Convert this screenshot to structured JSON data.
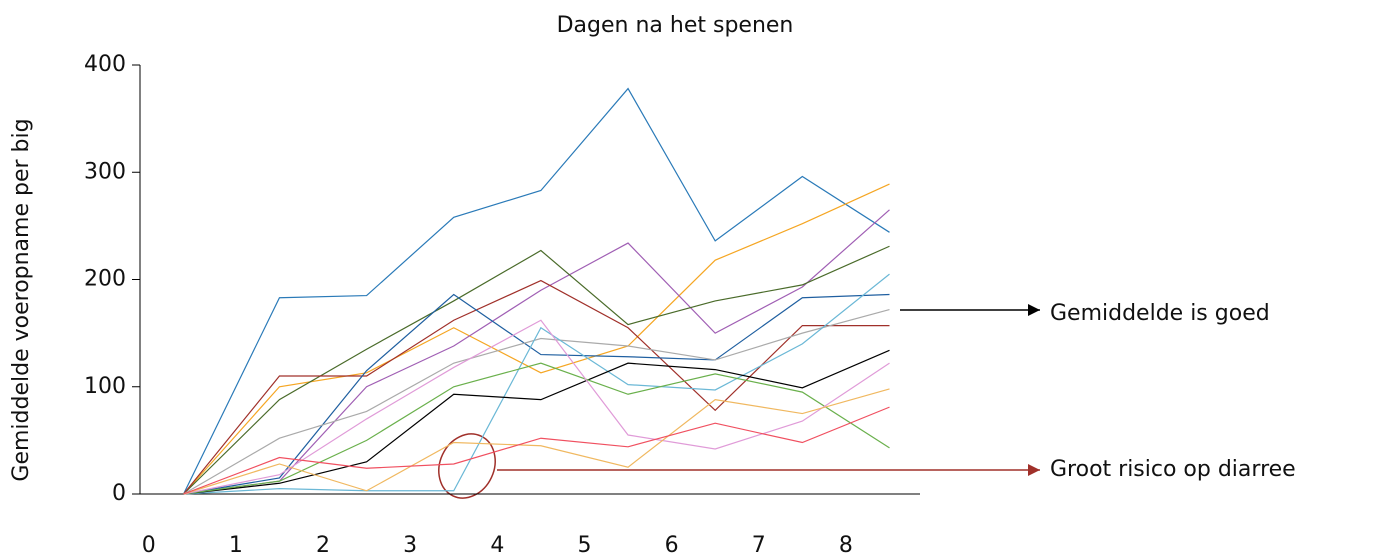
{
  "chart_data": {
    "type": "line",
    "title": "Dagen na het spenen",
    "y_label": "Gemiddelde voeropname per big",
    "annotations": [
      "Gemiddelde is goed",
      "Groot risico op diarree"
    ],
    "x": [
      0.4,
      1.5,
      2.5,
      3.5,
      4.5,
      5.5,
      6.5,
      7.5,
      8.5
    ],
    "xlim": [
      -0.1,
      8.85
    ],
    "xticks": [
      0,
      1,
      2,
      3,
      4,
      5,
      6,
      7,
      8
    ],
    "ylim": [
      0,
      400
    ],
    "yticks": [
      0,
      100,
      200,
      300,
      400
    ],
    "grid": false,
    "series": [
      {
        "color": "#2a7ab8",
        "values": [
          0,
          183,
          185,
          258,
          283,
          378,
          236,
          296,
          244
        ]
      },
      {
        "color": "#f5a623",
        "values": [
          0,
          100,
          113,
          155,
          113,
          138,
          218,
          252,
          289
        ]
      },
      {
        "color": "#a05fb4",
        "values": [
          0,
          12,
          100,
          138,
          190,
          234,
          150,
          193,
          265
        ]
      },
      {
        "color": "#4a6b2a",
        "values": [
          0,
          88,
          135,
          180,
          227,
          158,
          180,
          195,
          231
        ]
      },
      {
        "color": "#a0302a",
        "values": [
          0,
          110,
          110,
          162,
          199,
          155,
          78,
          157,
          157
        ]
      },
      {
        "color": "#1f5fa0",
        "values": [
          0,
          15,
          115,
          186,
          130,
          128,
          125,
          183,
          186
        ]
      },
      {
        "color": "#aaaaaa",
        "values": [
          0,
          52,
          77,
          122,
          145,
          138,
          125,
          150,
          172
        ]
      },
      {
        "color": "#6bb8d6",
        "values": [
          0,
          5,
          3,
          3,
          155,
          102,
          97,
          140,
          205
        ]
      },
      {
        "color": "#000000",
        "values": [
          0,
          10,
          30,
          93,
          88,
          122,
          116,
          99,
          134
        ]
      },
      {
        "color": "#6ab04c",
        "values": [
          0,
          12,
          50,
          100,
          122,
          93,
          112,
          95,
          43
        ]
      },
      {
        "color": "#e09bd8",
        "values": [
          0,
          18,
          70,
          118,
          162,
          55,
          42,
          68,
          122
        ]
      },
      {
        "color": "#f0b860",
        "values": [
          0,
          28,
          3,
          48,
          45,
          25,
          88,
          75,
          98
        ]
      },
      {
        "color": "#f05060",
        "values": [
          0,
          34,
          24,
          28,
          52,
          44,
          66,
          48,
          81
        ]
      }
    ]
  }
}
